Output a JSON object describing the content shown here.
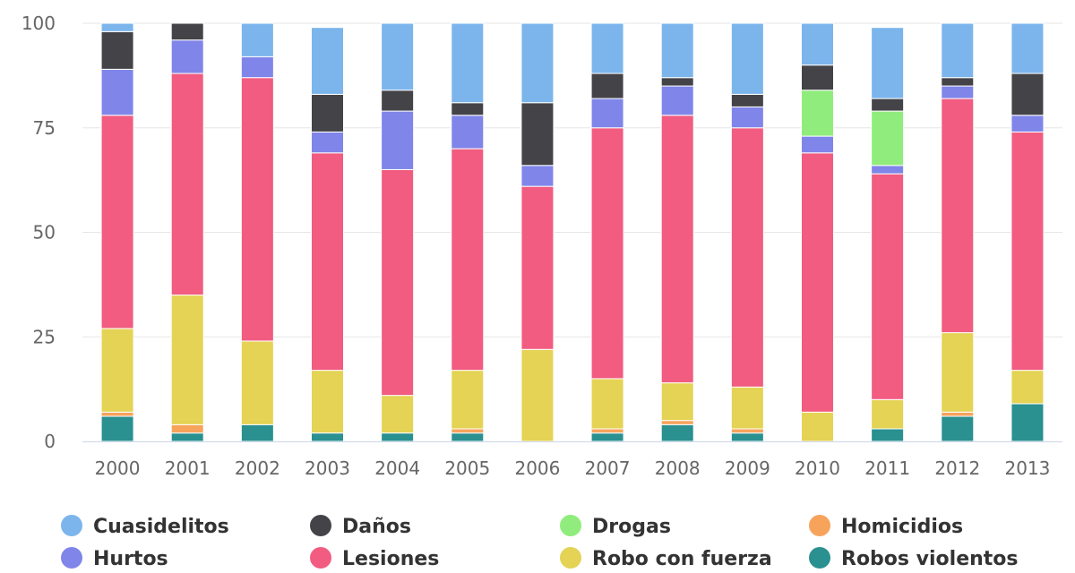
{
  "chart_data": {
    "type": "bar",
    "stacked": true,
    "title": "",
    "xlabel": "",
    "ylabel": "",
    "ylim": [
      0,
      100
    ],
    "yticks": [
      0,
      25,
      50,
      75,
      100
    ],
    "grid": true,
    "legend_position": "bottom",
    "categories": [
      "2000",
      "2001",
      "2002",
      "2003",
      "2004",
      "2005",
      "2006",
      "2007",
      "2008",
      "2009",
      "2010",
      "2011",
      "2012",
      "2013"
    ],
    "series": [
      {
        "name": "Robos violentos",
        "color": "#2a9090",
        "values": [
          6,
          2,
          4,
          2,
          2,
          2,
          0,
          2,
          4,
          2,
          0,
          3,
          6,
          9
        ]
      },
      {
        "name": "Homicidios",
        "color": "#f7a35c",
        "values": [
          1,
          2,
          0,
          0,
          0,
          1,
          0,
          1,
          1,
          1,
          0,
          0,
          1,
          0
        ]
      },
      {
        "name": "Robo con fuerza",
        "color": "#e4d354",
        "values": [
          20,
          31,
          20,
          15,
          9,
          14,
          22,
          12,
          9,
          10,
          7,
          7,
          19,
          8
        ]
      },
      {
        "name": "Lesiones",
        "color": "#f15c80",
        "values": [
          51,
          53,
          63,
          52,
          54,
          53,
          39,
          60,
          64,
          62,
          62,
          54,
          56,
          57
        ]
      },
      {
        "name": "Hurtos",
        "color": "#8085e9",
        "values": [
          11,
          8,
          5,
          5,
          14,
          8,
          5,
          7,
          7,
          5,
          4,
          2,
          3,
          4
        ]
      },
      {
        "name": "Drogas",
        "color": "#90ed7d",
        "values": [
          0,
          0,
          0,
          0,
          0,
          0,
          0,
          0,
          0,
          0,
          11,
          13,
          0,
          0
        ]
      },
      {
        "name": "Daños",
        "color": "#434348",
        "values": [
          9,
          4,
          0,
          9,
          5,
          3,
          15,
          6,
          2,
          3,
          6,
          3,
          2,
          10
        ]
      },
      {
        "name": "Cuasidelitos",
        "color": "#7cb5ec",
        "values": [
          2,
          0,
          8,
          16,
          16,
          19,
          19,
          12,
          13,
          17,
          10,
          17,
          13,
          12
        ]
      }
    ],
    "legend": [
      {
        "name": "Cuasidelitos",
        "color": "#7cb5ec"
      },
      {
        "name": "Daños",
        "color": "#434348"
      },
      {
        "name": "Drogas",
        "color": "#90ed7d"
      },
      {
        "name": "Homicidios",
        "color": "#f7a35c"
      },
      {
        "name": "Hurtos",
        "color": "#8085e9"
      },
      {
        "name": "Lesiones",
        "color": "#f15c80"
      },
      {
        "name": "Robo con fuerza",
        "color": "#e4d354"
      },
      {
        "name": "Robos violentos",
        "color": "#2a9090"
      }
    ]
  }
}
